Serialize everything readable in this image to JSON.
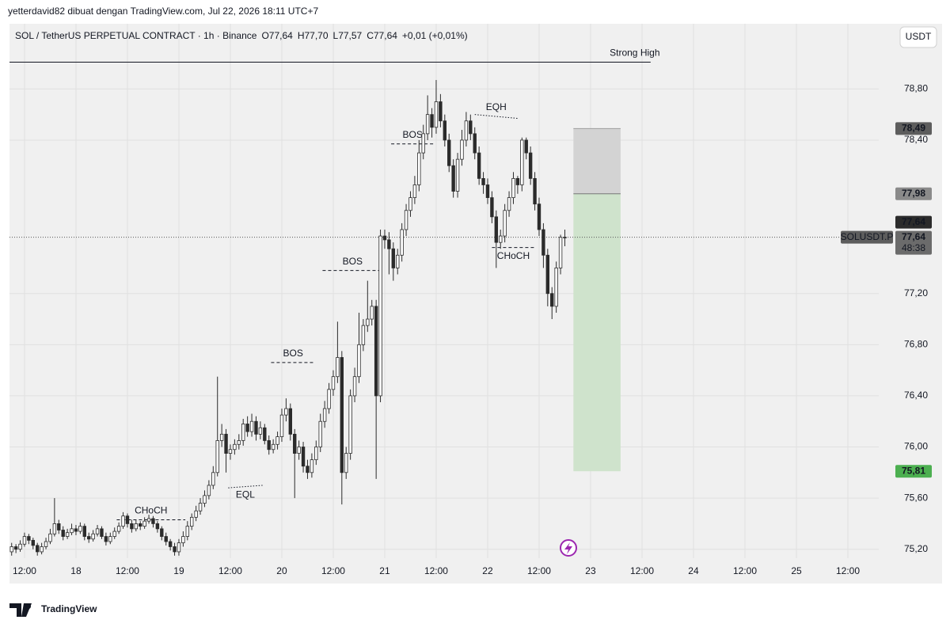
{
  "page_header": "yetterdavid82 dibuat dengan TradingView.com, Jul 22, 2026 18:11 UTC+7",
  "footer_logo": "TradingView",
  "chart_data": {
    "type": "candlestick",
    "symbol": "SOL / TetherUS PERPETUAL CONTRACT · 1h · Binance",
    "ohlc_legend": [
      "O77,64",
      "H77,70",
      "L77,57",
      "C77,64",
      "+0,01 (+0,01%)"
    ],
    "currency_button": "USDT",
    "up_color": "#ffffff",
    "down_color": "#2b2b2b",
    "wick_color": "#2b2b2b",
    "x_start": "2026-07-17T09:00",
    "x_step_hours": 1,
    "open": [
      75.18,
      75.22,
      75.2,
      75.24,
      75.3,
      75.27,
      75.23,
      75.18,
      75.22,
      75.26,
      75.32,
      75.4,
      75.35,
      75.3,
      75.33,
      75.36,
      75.34,
      75.38,
      75.3,
      75.28,
      75.32,
      75.36,
      75.3,
      75.26,
      75.3,
      75.34,
      75.38,
      75.46,
      75.4,
      75.36,
      75.4,
      75.38,
      75.42,
      75.44,
      75.4,
      75.36,
      75.3,
      75.26,
      75.22,
      75.18,
      75.25,
      75.3,
      75.38,
      75.45,
      75.5,
      75.56,
      75.62,
      75.7,
      75.8,
      76.05,
      76.1,
      75.95,
      75.98,
      76.02,
      76.05,
      76.18,
      76.12,
      76.2,
      76.1,
      76.15,
      76.05,
      75.98,
      76.02,
      76.08,
      76.25,
      76.3,
      76.1,
      75.95,
      76.0,
      75.85,
      75.8,
      75.9,
      76.0,
      76.2,
      76.3,
      76.45,
      76.55,
      76.7,
      75.8,
      75.95,
      76.4,
      76.55,
      76.8,
      76.95,
      77.0,
      77.1,
      76.4,
      77.65,
      77.62,
      77.55,
      77.4,
      77.5,
      77.7,
      77.85,
      77.95,
      78.05,
      78.3,
      78.45,
      78.6,
      78.5,
      78.7,
      78.55,
      78.4,
      78.2,
      78.0,
      78.25,
      78.4,
      78.55,
      78.45,
      78.3,
      78.1,
      78.05,
      77.95,
      77.8,
      77.6,
      77.65,
      77.85,
      77.95,
      78.1,
      78.05,
      78.4,
      78.3,
      78.1,
      77.9,
      77.7,
      77.5,
      77.2,
      77.1,
      77.4,
      77.64
    ],
    "high": [
      75.25,
      75.24,
      75.27,
      75.33,
      75.32,
      75.29,
      75.25,
      75.25,
      75.29,
      75.36,
      75.6,
      75.43,
      75.38,
      75.36,
      75.4,
      75.39,
      75.41,
      75.4,
      75.33,
      75.35,
      75.39,
      75.38,
      75.33,
      75.33,
      75.37,
      75.41,
      75.49,
      75.48,
      75.43,
      75.43,
      75.42,
      75.45,
      75.47,
      75.46,
      75.42,
      75.38,
      75.33,
      75.28,
      75.25,
      75.28,
      75.34,
      75.42,
      75.48,
      75.54,
      75.6,
      75.66,
      75.74,
      75.85,
      76.55,
      76.18,
      76.14,
      76.02,
      76.06,
      76.1,
      76.22,
      76.24,
      76.26,
      76.24,
      76.2,
      76.18,
      76.09,
      76.06,
      76.12,
      76.3,
      76.38,
      76.34,
      76.14,
      76.05,
      76.04,
      75.9,
      75.95,
      76.05,
      76.26,
      76.36,
      76.5,
      76.6,
      76.98,
      76.75,
      76.0,
      76.45,
      76.62,
      77.05,
      77.0,
      77.3,
      77.15,
      77.15,
      77.7,
      77.7,
      77.68,
      77.6,
      77.55,
      77.75,
      77.9,
      78.0,
      78.12,
      78.4,
      78.52,
      78.75,
      78.65,
      78.87,
      78.76,
      78.6,
      78.45,
      78.25,
      78.3,
      78.48,
      78.62,
      78.6,
      78.5,
      78.35,
      78.15,
      78.1,
      78.0,
      77.85,
      77.7,
      77.9,
      78.0,
      78.15,
      78.12,
      78.42,
      78.42,
      78.35,
      78.15,
      77.95,
      77.75,
      77.55,
      77.25,
      77.45,
      77.66,
      77.7
    ],
    "low": [
      75.15,
      75.17,
      75.18,
      75.22,
      75.24,
      75.2,
      75.15,
      75.16,
      75.2,
      75.24,
      75.3,
      75.32,
      75.27,
      75.28,
      75.31,
      75.31,
      75.32,
      75.27,
      75.25,
      75.26,
      75.3,
      75.28,
      75.23,
      75.24,
      75.28,
      75.32,
      75.36,
      75.37,
      75.33,
      75.34,
      75.35,
      75.36,
      75.4,
      75.37,
      75.33,
      75.27,
      75.23,
      75.19,
      75.15,
      75.15,
      75.22,
      75.27,
      75.35,
      75.42,
      75.47,
      75.53,
      75.59,
      75.67,
      75.77,
      76.0,
      75.8,
      75.9,
      75.94,
      75.98,
      76.01,
      76.08,
      76.08,
      76.05,
      76.06,
      76.02,
      75.94,
      75.95,
      75.98,
      76.04,
      76.2,
      76.05,
      75.6,
      75.9,
      75.8,
      75.75,
      75.76,
      75.86,
      75.96,
      76.15,
      76.26,
      76.4,
      76.5,
      75.55,
      75.75,
      75.9,
      76.35,
      76.5,
      76.75,
      76.9,
      76.95,
      75.75,
      76.35,
      77.55,
      77.35,
      77.3,
      77.35,
      77.45,
      77.65,
      77.8,
      77.9,
      78.0,
      78.25,
      78.4,
      78.42,
      78.45,
      78.5,
      78.35,
      78.15,
      77.95,
      77.95,
      78.2,
      78.35,
      78.4,
      78.25,
      78.05,
      77.98,
      77.9,
      77.75,
      77.4,
      77.55,
      77.6,
      77.8,
      77.9,
      77.98,
      78.0,
      78.25,
      78.05,
      77.85,
      77.65,
      77.4,
      77.1,
      77.0,
      77.05,
      77.35,
      77.57
    ],
    "close": [
      75.22,
      75.2,
      75.24,
      75.3,
      75.27,
      75.23,
      75.18,
      75.22,
      75.26,
      75.32,
      75.4,
      75.35,
      75.3,
      75.33,
      75.36,
      75.34,
      75.38,
      75.3,
      75.28,
      75.32,
      75.36,
      75.3,
      75.26,
      75.3,
      75.34,
      75.38,
      75.46,
      75.4,
      75.36,
      75.4,
      75.38,
      75.42,
      75.44,
      75.4,
      75.36,
      75.3,
      75.26,
      75.22,
      75.18,
      75.25,
      75.3,
      75.38,
      75.45,
      75.5,
      75.56,
      75.62,
      75.7,
      75.8,
      76.05,
      76.1,
      75.95,
      75.98,
      76.02,
      76.05,
      76.18,
      76.12,
      76.2,
      76.1,
      76.15,
      76.05,
      75.98,
      76.02,
      76.08,
      76.25,
      76.3,
      76.1,
      75.95,
      76.0,
      75.85,
      75.8,
      75.9,
      76.0,
      76.2,
      76.3,
      76.45,
      76.55,
      76.7,
      75.8,
      75.95,
      76.4,
      76.55,
      76.8,
      76.95,
      77.0,
      77.1,
      76.4,
      77.65,
      77.62,
      77.55,
      77.4,
      77.5,
      77.7,
      77.85,
      77.95,
      78.05,
      78.3,
      78.45,
      78.6,
      78.5,
      78.7,
      78.55,
      78.4,
      78.2,
      78.0,
      78.25,
      78.4,
      78.55,
      78.45,
      78.3,
      78.1,
      78.05,
      77.95,
      77.8,
      77.6,
      77.65,
      77.85,
      77.95,
      78.1,
      78.05,
      78.4,
      78.3,
      78.1,
      77.9,
      77.7,
      77.5,
      77.2,
      77.1,
      77.4,
      77.64,
      77.64
    ],
    "xlim": [
      "2026-07-17T08:30",
      "2026-07-25T19:12"
    ],
    "xticks": [
      {
        "value": "2026-07-17T12:00",
        "label": "12:00"
      },
      {
        "value": "2026-07-18T00:00",
        "label": "18"
      },
      {
        "value": "2026-07-18T12:00",
        "label": "12:00"
      },
      {
        "value": "2026-07-19T00:00",
        "label": "19"
      },
      {
        "value": "2026-07-19T12:00",
        "label": "12:00"
      },
      {
        "value": "2026-07-20T00:00",
        "label": "20"
      },
      {
        "value": "2026-07-20T12:00",
        "label": "12:00"
      },
      {
        "value": "2026-07-21T00:00",
        "label": "21"
      },
      {
        "value": "2026-07-21T12:00",
        "label": "12:00"
      },
      {
        "value": "2026-07-22T00:00",
        "label": "22"
      },
      {
        "value": "2026-07-22T12:00",
        "label": "12:00"
      },
      {
        "value": "2026-07-23T00:00",
        "label": "23"
      },
      {
        "value": "2026-07-23T12:00",
        "label": "12:00"
      },
      {
        "value": "2026-07-24T00:00",
        "label": "24"
      },
      {
        "value": "2026-07-24T12:00",
        "label": "12:00"
      },
      {
        "value": "2026-07-25T00:00",
        "label": "25"
      },
      {
        "value": "2026-07-25T12:00",
        "label": "12:00"
      }
    ],
    "ylim": [
      75.13,
      79.31
    ],
    "yticks": [
      {
        "value": 75.2,
        "label": "75,20"
      },
      {
        "value": 75.6,
        "label": "75,60"
      },
      {
        "value": 76.0,
        "label": "76,00"
      },
      {
        "value": 76.4,
        "label": "76,40"
      },
      {
        "value": 76.8,
        "label": "76,80"
      },
      {
        "value": 77.2,
        "label": "77,20"
      },
      {
        "value": 78.4,
        "label": "78,40"
      },
      {
        "value": 78.8,
        "label": "78,80"
      }
    ],
    "grid": true,
    "last_price": {
      "value": 77.64,
      "label": "77,64",
      "symbol": "SOLUSDT.P",
      "countdown": "48:38"
    },
    "position": {
      "x": [
        "2026-07-22T20:00",
        "2026-07-23T07:00"
      ],
      "stop": {
        "value": 78.49,
        "label": "78,49"
      },
      "entry": {
        "value": 77.98,
        "label": "77,98"
      },
      "target": {
        "value": 75.81,
        "label": "75,81"
      },
      "risk_color": "#d3d3d3",
      "reward_color": "#cfe3cc"
    },
    "annotations": [
      {
        "label": "Strong High",
        "x": [
          "2026-07-17T08:30",
          "2026-07-23T14:00"
        ],
        "y": [
          79.01,
          79.01
        ],
        "style": "solid",
        "label_side": "above"
      },
      {
        "label": "BOS",
        "x": [
          "2026-07-21T01:30",
          "2026-07-21T11:30"
        ],
        "y": [
          78.37,
          78.37
        ],
        "style": "dashed",
        "label_side": "above"
      },
      {
        "label": "EQH",
        "x": [
          "2026-07-21T21:00",
          "2026-07-22T07:00"
        ],
        "y": [
          78.6,
          78.57
        ],
        "style": "dotted",
        "label_side": "above"
      },
      {
        "label": "BOS",
        "x": [
          "2026-07-20T09:30",
          "2026-07-20T23:30"
        ],
        "y": [
          77.38,
          77.38
        ],
        "style": "dashed",
        "label_side": "above"
      },
      {
        "label": "CHoCH",
        "x": [
          "2026-07-22T01:00",
          "2026-07-22T11:00"
        ],
        "y": [
          77.56,
          77.56
        ],
        "style": "dashed",
        "label_side": "below"
      },
      {
        "label": "BOS",
        "x": [
          "2026-07-19T21:30",
          "2026-07-20T07:45"
        ],
        "y": [
          76.66,
          76.66
        ],
        "style": "dashed",
        "label_side": "above"
      },
      {
        "label": "EQL",
        "x": [
          "2026-07-19T11:30",
          "2026-07-19T19:30"
        ],
        "y": [
          75.68,
          75.7
        ],
        "style": "dotted",
        "label_side": "below"
      },
      {
        "label": "CHoCH",
        "x": [
          "2026-07-18T09:30",
          "2026-07-19T01:30"
        ],
        "y": [
          75.43,
          75.43
        ],
        "style": "dashed",
        "label_side": "above"
      }
    ]
  }
}
